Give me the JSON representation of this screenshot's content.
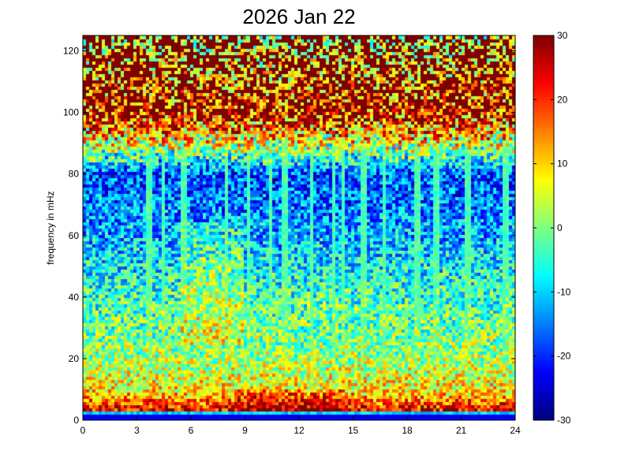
{
  "chart_data": {
    "type": "heatmap",
    "title": "2026 Jan 22",
    "xlabel": "",
    "ylabel": "frequency in mHz",
    "xlim": [
      0,
      24
    ],
    "ylim": [
      0,
      125
    ],
    "x_ticks": [
      "0",
      "3",
      "6",
      "9",
      "12",
      "15",
      "18",
      "21",
      "24"
    ],
    "y_ticks": [
      "0",
      "20",
      "40",
      "60",
      "80",
      "100",
      "120"
    ],
    "colorbar": {
      "range": [
        -30,
        30
      ],
      "ticks": [
        "-30",
        "-20",
        "-10",
        "0",
        "10",
        "20",
        "30"
      ],
      "colormap": "jet"
    },
    "intensity_profile": {
      "description_freq": [
        0,
        2,
        5,
        10,
        20,
        40,
        60,
        80,
        100,
        125
      ],
      "approx_level": [
        -25,
        28,
        20,
        8,
        2,
        -4,
        -12,
        -18,
        26,
        28
      ]
    },
    "vertical_streaks_hours": [
      3.7,
      4.5,
      5.6,
      8.0,
      9.2,
      10.4,
      11.2,
      12.7,
      13.9,
      14.5,
      15.6,
      16.7,
      18.6,
      19.6,
      21.4,
      23.5
    ],
    "grid": false,
    "legend": "none"
  }
}
